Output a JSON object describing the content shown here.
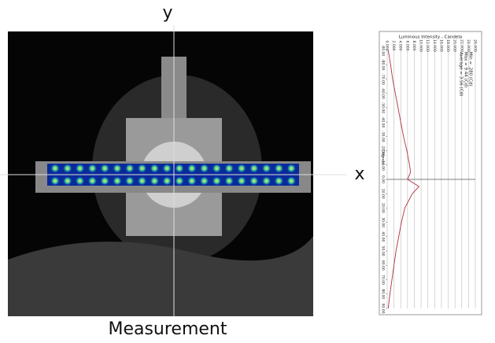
{
  "labels": {
    "y_axis": "y",
    "x_axis": "x",
    "caption": "Measurement"
  },
  "plot": {
    "title": "Luminous Intensity - Candela",
    "angle_label": "Degrees",
    "stats": [
      "Min = .280 (Cd)",
      "Max = 9.44 (Cd)",
      "Average = 3.56 (Cd)"
    ],
    "intensity_lim": [
      0,
      26
    ],
    "intensity_ticks": [
      {
        "value": 0,
        "label": "0.000"
      },
      {
        "value": 2,
        "label": "2.000"
      },
      {
        "value": 4,
        "label": "4.000"
      },
      {
        "value": 6,
        "label": "6.000"
      },
      {
        "value": 8,
        "label": "8.000"
      },
      {
        "value": 10,
        "label": "10.000"
      },
      {
        "value": 12,
        "label": "12.000"
      },
      {
        "value": 14,
        "label": "14.000"
      },
      {
        "value": 16,
        "label": "16.000"
      },
      {
        "value": 18,
        "label": "18.000"
      },
      {
        "value": 20,
        "label": "20.000"
      },
      {
        "value": 22,
        "label": "22.000"
      },
      {
        "value": 24,
        "label": "24.000"
      },
      {
        "value": 26,
        "label": "26.000"
      }
    ],
    "angle_lim": [
      -90,
      90
    ],
    "angle_ticks": [
      {
        "value": -90,
        "label": "-90.00"
      },
      {
        "value": -80,
        "label": "-80.00"
      },
      {
        "value": -70,
        "label": "-70.00"
      },
      {
        "value": -60,
        "label": "-60.00"
      },
      {
        "value": -50,
        "label": "-50.00"
      },
      {
        "value": -40,
        "label": "-40.00"
      },
      {
        "value": -30,
        "label": "-30.00"
      },
      {
        "value": -20,
        "label": "-20.00"
      },
      {
        "value": -10,
        "label": "-10.00"
      },
      {
        "value": 0,
        "label": "0.00"
      },
      {
        "value": 10,
        "label": "10.00"
      },
      {
        "value": 20,
        "label": "20.00"
      },
      {
        "value": 30,
        "label": "30.00"
      },
      {
        "value": 40,
        "label": "40.00"
      },
      {
        "value": 50,
        "label": "50.00"
      },
      {
        "value": 60,
        "label": "60.00"
      },
      {
        "value": 70,
        "label": "70.00"
      },
      {
        "value": 80,
        "label": "80.00"
      },
      {
        "value": 90,
        "label": "90.00"
      }
    ],
    "angles": [
      -90,
      -80,
      -70,
      -60,
      -50,
      -40,
      -30,
      -20,
      -10,
      -5,
      0,
      5,
      10,
      20,
      30,
      40,
      50,
      60,
      70,
      80,
      90
    ],
    "intensity": [
      0.3,
      1.0,
      1.6,
      2.4,
      3.2,
      4.0,
      4.8,
      5.8,
      6.6,
      6.9,
      6.0,
      9.4,
      7.4,
      5.2,
      4.2,
      3.4,
      2.6,
      2.0,
      1.4,
      0.8,
      0.3
    ],
    "curve_color": "#b03040"
  }
}
